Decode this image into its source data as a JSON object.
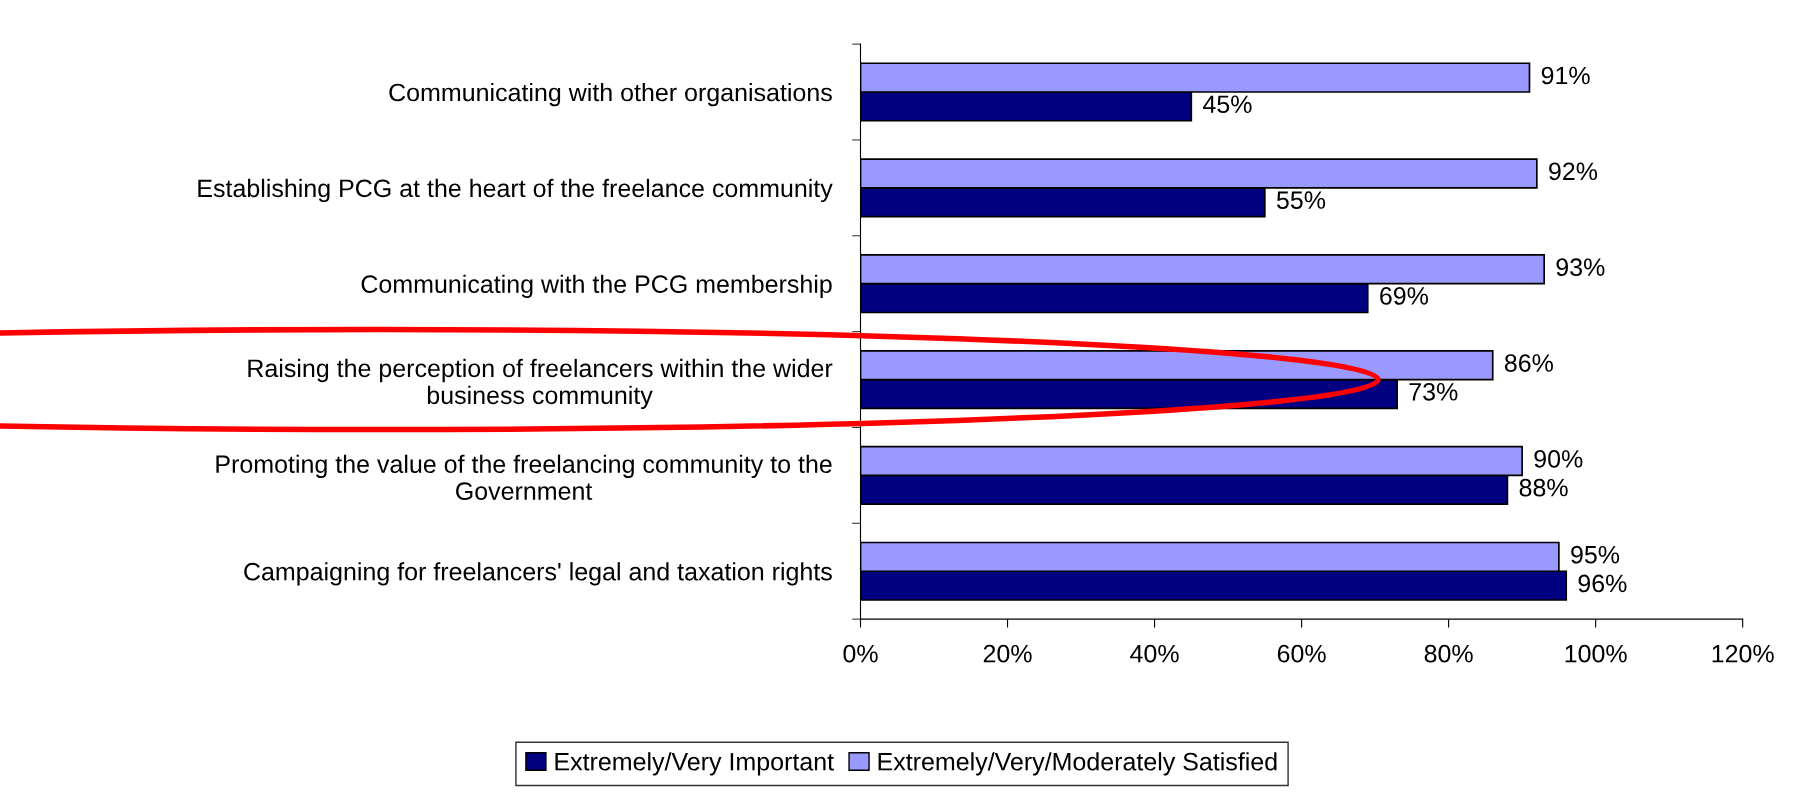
{
  "chart_data": {
    "type": "bar",
    "orientation": "horizontal",
    "categories": [
      "Communicating with other organisations",
      "Establishing PCG at the heart of the freelance community",
      "Communicating with the PCG membership",
      "Raising the perception of freelancers within the wider\nbusiness community",
      "Promoting the value of the freelancing community to the\nGovernment",
      "Campaigning for freelancers' legal and taxation rights"
    ],
    "series": [
      {
        "name": "Extremely/Very Important",
        "color": "#000080",
        "values": [
          45,
          55,
          69,
          73,
          88,
          96
        ],
        "value_labels": [
          "45%",
          "55%",
          "69%",
          "73%",
          "88%",
          "96%"
        ]
      },
      {
        "name": "Extremely/Very/Moderately Satisfied",
        "color": "#9999ff",
        "values": [
          91,
          92,
          93,
          86,
          90,
          95
        ],
        "value_labels": [
          "91%",
          "92%",
          "93%",
          "86%",
          "90%",
          "95%"
        ]
      }
    ],
    "xlim": [
      0,
      120
    ],
    "xticks": [
      {
        "value": 0,
        "label": "0%"
      },
      {
        "value": 20,
        "label": "20%"
      },
      {
        "value": 40,
        "label": "40%"
      },
      {
        "value": 60,
        "label": "60%"
      },
      {
        "value": 80,
        "label": "80%"
      },
      {
        "value": 100,
        "label": "100%"
      },
      {
        "value": 120,
        "label": "120%"
      }
    ],
    "grid": false,
    "legend": "bottom"
  }
}
